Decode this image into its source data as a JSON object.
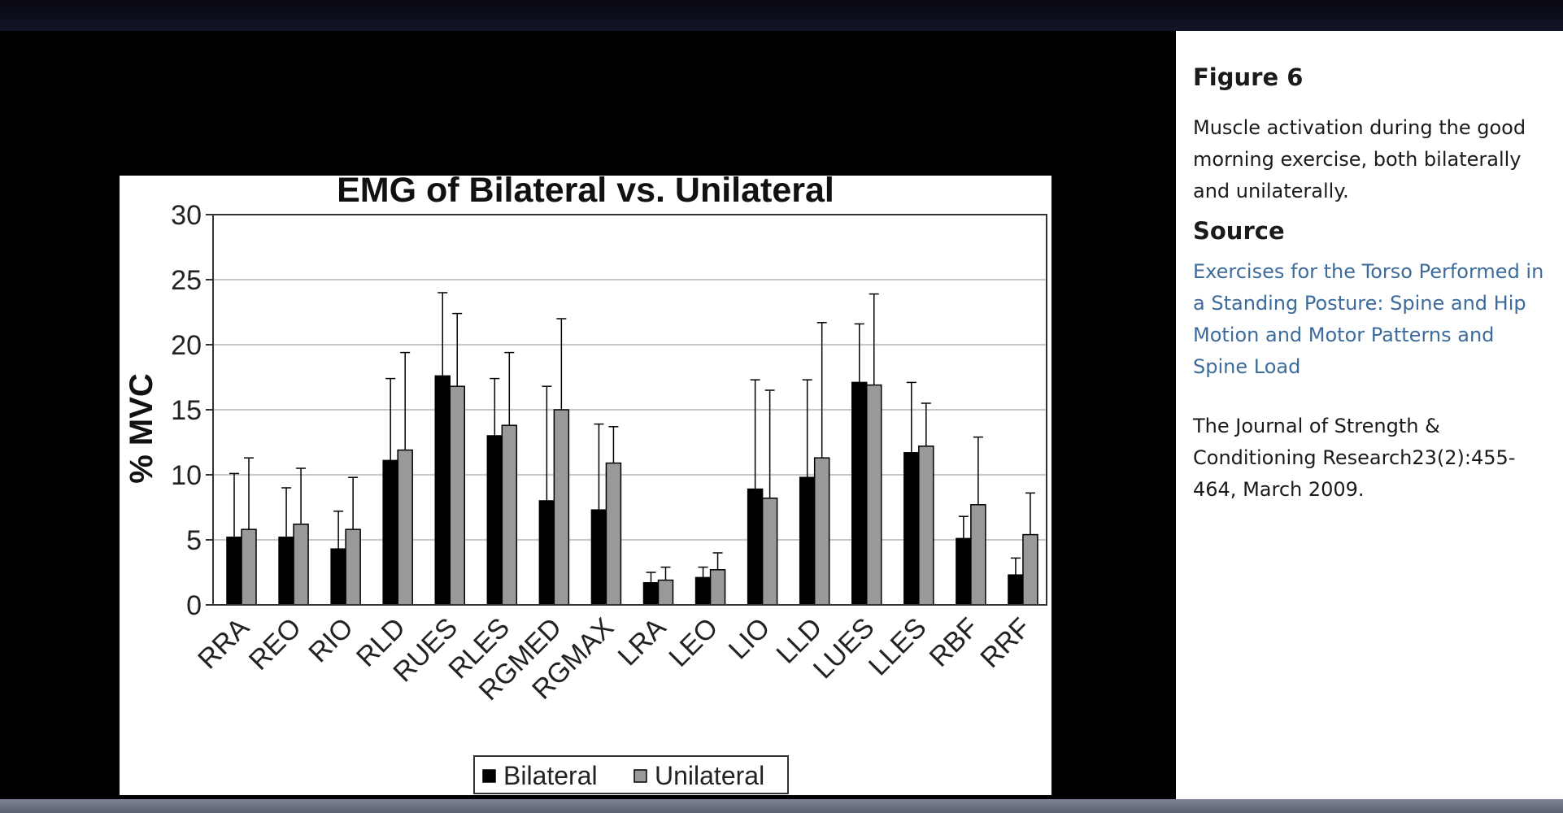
{
  "panel": {
    "figure_title": "Figure 6",
    "caption": "Muscle activation during the good morning exercise, both bilaterally and unilaterally.",
    "source_heading": "Source",
    "source_link": "Exercises for the Torso Performed in a Standing Posture: Spine and Hip Motion and Motor Patterns and Spine Load",
    "journal": "The Journal of Strength & Conditioning Research23(2):455-464, March 2009."
  },
  "chart_data": {
    "type": "bar",
    "title": "EMG of Bilateral vs. Unilateral",
    "xlabel": "",
    "ylabel": "% MVC",
    "ylim": [
      0,
      30
    ],
    "yticks": [
      0,
      5,
      10,
      15,
      20,
      25,
      30
    ],
    "grid": true,
    "legend": "bottom-center",
    "categories": [
      "RRA",
      "REO",
      "RIO",
      "RLD",
      "RUES",
      "RLES",
      "RGMED",
      "RGMAX",
      "LRA",
      "LEO",
      "LIO",
      "LLD",
      "LUES",
      "LLES",
      "RBF",
      "RRF"
    ],
    "series": [
      {
        "name": "Bilateral",
        "color": "#000000",
        "values": [
          5.2,
          5.2,
          4.3,
          11.1,
          17.6,
          13.0,
          8.0,
          7.3,
          1.7,
          2.1,
          8.9,
          9.8,
          17.1,
          11.7,
          5.1,
          2.3
        ],
        "error": [
          4.9,
          3.8,
          2.9,
          6.3,
          6.4,
          4.4,
          8.8,
          6.6,
          0.8,
          0.8,
          8.4,
          7.5,
          4.5,
          5.4,
          1.7,
          1.3
        ]
      },
      {
        "name": "Unilateral",
        "color": "#999999",
        "values": [
          5.8,
          6.2,
          5.8,
          11.9,
          16.8,
          13.8,
          15.0,
          10.9,
          1.9,
          2.7,
          8.2,
          11.3,
          16.9,
          12.2,
          7.7,
          5.4
        ],
        "error": [
          5.5,
          4.3,
          4.0,
          7.5,
          5.6,
          5.6,
          7.0,
          2.8,
          1.0,
          1.3,
          8.3,
          10.4,
          7.0,
          3.3,
          5.2,
          3.2
        ]
      }
    ]
  }
}
